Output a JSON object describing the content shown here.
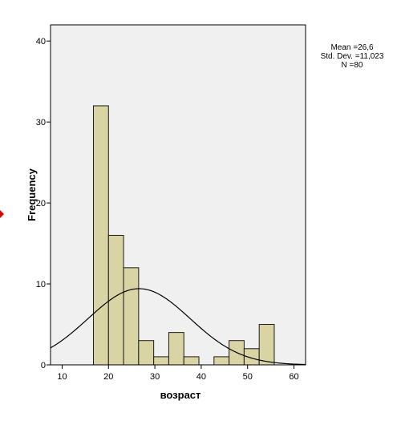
{
  "chart_data": {
    "type": "bar",
    "subtype": "histogram",
    "title": "",
    "xlabel": "возраст",
    "ylabel": "Frequency",
    "xlim": [
      7.5,
      62.5
    ],
    "ylim": [
      0,
      42
    ],
    "x_ticks": [
      10,
      20,
      30,
      40,
      50,
      60
    ],
    "y_ticks": [
      0,
      10,
      20,
      30,
      40
    ],
    "bin_width": 3.25,
    "bins": [
      {
        "start": 16.75,
        "end": 20.0,
        "count": 32
      },
      {
        "start": 20.0,
        "end": 23.25,
        "count": 16
      },
      {
        "start": 23.25,
        "end": 26.5,
        "count": 12
      },
      {
        "start": 26.5,
        "end": 29.75,
        "count": 3
      },
      {
        "start": 29.75,
        "end": 33.0,
        "count": 1
      },
      {
        "start": 33.0,
        "end": 36.25,
        "count": 4
      },
      {
        "start": 36.25,
        "end": 39.5,
        "count": 1
      },
      {
        "start": 39.5,
        "end": 42.75,
        "count": 0
      },
      {
        "start": 42.75,
        "end": 46.0,
        "count": 1
      },
      {
        "start": 46.0,
        "end": 49.25,
        "count": 3
      },
      {
        "start": 49.25,
        "end": 52.5,
        "count": 2
      },
      {
        "start": 52.5,
        "end": 55.75,
        "count": 5
      }
    ],
    "normal_curve": {
      "mean": 26.6,
      "std_dev": 11.023,
      "n": 80
    },
    "stats": {
      "mean_label": "Mean =26,6",
      "std_label": "Std. Dev. =11,023",
      "n_label": "N =80"
    },
    "grid": false,
    "legend": "top-right",
    "colors": {
      "bar_fill": "#d9d4a4",
      "bar_stroke": "#1a1a1a",
      "plot_background": "#f0f0f0",
      "curve": "#000000"
    }
  }
}
